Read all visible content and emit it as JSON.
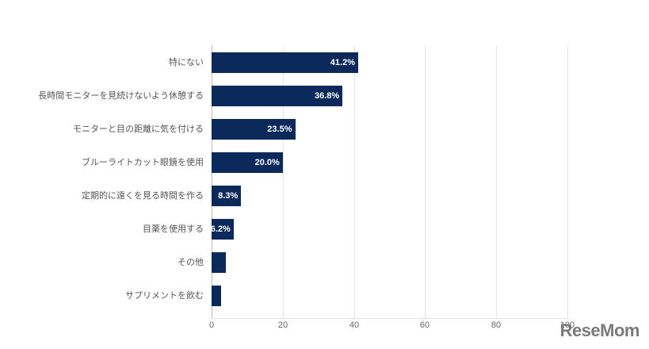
{
  "chart_data": {
    "type": "bar",
    "orientation": "horizontal",
    "title": "",
    "xlabel": "",
    "ylabel": "",
    "xlim": [
      0,
      100
    ],
    "x_ticks": [
      "0",
      "20",
      "40",
      "60",
      "80",
      "100"
    ],
    "grid": true,
    "legend": null,
    "categories": [
      "特にない",
      "長時間モニターを見続けないよう休憩する",
      "モニターと目の距離に気を付ける",
      "ブルーライトカット眼鏡を使用",
      "定期的に遠くを見る時間を作る",
      "目薬を使用する",
      "その他",
      "サプリメントを飲む"
    ],
    "values": [
      41.2,
      36.8,
      23.5,
      20.0,
      8.3,
      6.2,
      4.0,
      2.7
    ],
    "data_labels": [
      "41.2%",
      "36.8%",
      "23.5%",
      "20.0%",
      "8.3%",
      "6.2%",
      "",
      ""
    ],
    "bar_color": "#0b2a5b"
  },
  "watermark": "ReseMom"
}
